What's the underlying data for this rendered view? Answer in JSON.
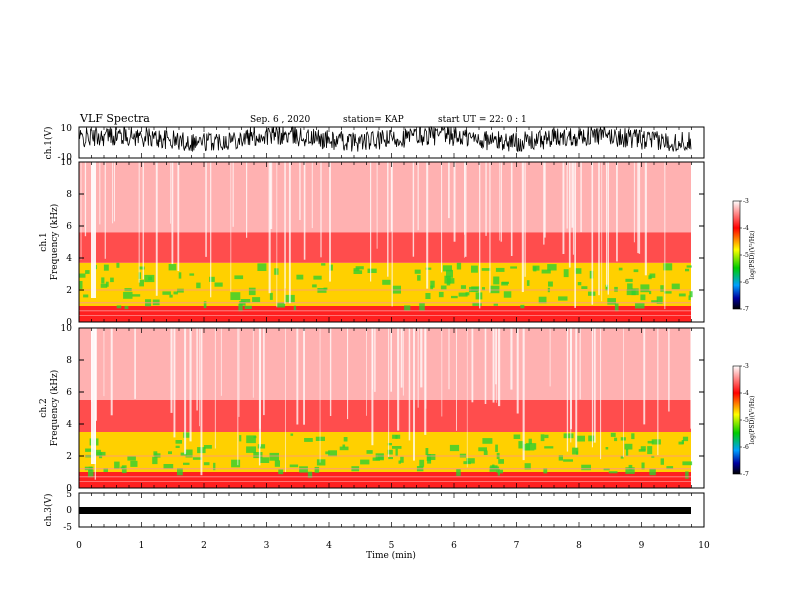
{
  "header": {
    "title": "VLF Spectra",
    "date": "Sep. 6 , 2020",
    "station": "station= KAP",
    "start_time": "start UT =  22: 0  : 1"
  },
  "colors": {
    "spectrogram_background": "#ffffff",
    "spectrogram_low": "#ff2020",
    "spectrogram_mid": "#ffd000",
    "spectrogram_high": "#30d030",
    "colorbar_stops": [
      "#ffffff",
      "#ff0000",
      "#ffff00",
      "#00cc00",
      "#00a0ff",
      "#0000a0",
      "#000000"
    ]
  },
  "chart_data": [
    {
      "type": "line",
      "id": "ch1",
      "ylabel": "ch.1(V)",
      "ylim": [
        -10,
        10
      ],
      "y_tick_labels": [
        "10",
        "-10"
      ],
      "xlim": [
        0,
        10
      ],
      "series": [
        {
          "values": "dense noisy waveform, approx. -7 to 10 V"
        }
      ]
    },
    {
      "type": "heatmap",
      "id": "spec1",
      "ylabel": "ch.1\nFrequency (kHz)",
      "ylim": [
        0,
        10
      ],
      "y_tick_labels": [
        "0",
        "2",
        "4",
        "6",
        "8",
        "10"
      ],
      "xlim": [
        0,
        10
      ],
      "colorbar": {
        "label": "log(PSD)(V²/Hz)",
        "ticks": [
          -3,
          -4,
          -5,
          -6,
          -7
        ],
        "tick_labels": [
          "-3",
          "-4",
          "-5",
          "-6",
          "-7"
        ],
        "range": [
          -7,
          -3
        ]
      },
      "bands_khz": [
        {
          "from": 0,
          "to": 1.0,
          "level": "high"
        },
        {
          "from": 1.0,
          "to": 3.7,
          "level": "mid"
        },
        {
          "from": 3.7,
          "to": 5.6,
          "level": "low"
        },
        {
          "from": 5.6,
          "to": 10,
          "level": "faint"
        }
      ]
    },
    {
      "type": "heatmap",
      "id": "spec2",
      "ylabel": "ch.2\nFrequency (kHz)",
      "ylim": [
        0,
        10
      ],
      "y_tick_labels": [
        "0",
        "2",
        "4",
        "6",
        "8",
        "10"
      ],
      "xlim": [
        0,
        10
      ],
      "colorbar": {
        "label": "log(PSD)(V²/Hz)",
        "ticks": [
          -3,
          -4,
          -5,
          -6,
          -7
        ],
        "tick_labels": [
          "-3",
          "-4",
          "-5",
          "-6",
          "-7"
        ],
        "range": [
          -7,
          -3
        ]
      },
      "bands_khz": [
        {
          "from": 0,
          "to": 1.0,
          "level": "high"
        },
        {
          "from": 1.0,
          "to": 3.5,
          "level": "mid"
        },
        {
          "from": 3.5,
          "to": 5.5,
          "level": "low"
        },
        {
          "from": 5.5,
          "to": 10,
          "level": "faint"
        }
      ]
    },
    {
      "type": "line",
      "id": "ch3",
      "ylabel": "ch.3(V)",
      "ylim": [
        -5,
        5
      ],
      "y_tick_labels": [
        "5",
        "0",
        "-5"
      ],
      "xlim": [
        0,
        10
      ],
      "series": [
        {
          "values": "thick band around -1.5 V"
        }
      ]
    }
  ],
  "x_axis": {
    "label": "Time  (min)",
    "tick_labels": [
      "0",
      "1",
      "2",
      "3",
      "4",
      "5",
      "6",
      "7",
      "8",
      "9",
      "10"
    ],
    "range": [
      0,
      10
    ]
  }
}
